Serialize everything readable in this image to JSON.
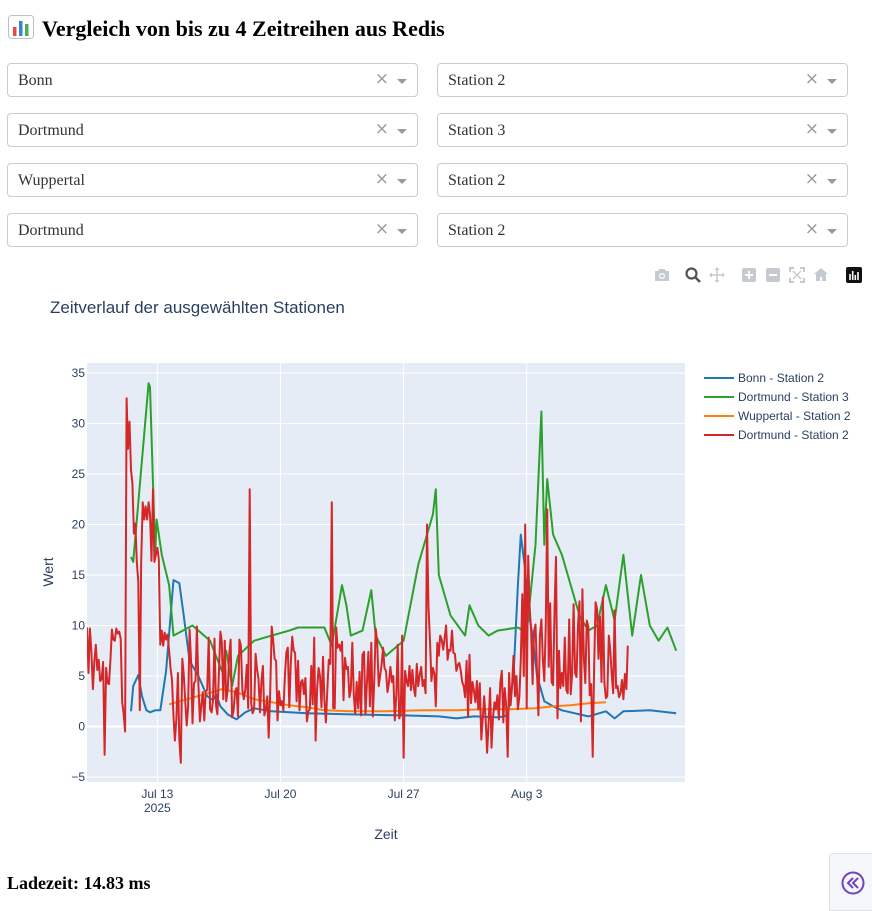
{
  "page": {
    "title": "Vergleich von bis zu 4 Zeitreihen aus Redis",
    "title_icon": "bar-chart-emoji",
    "load_time": "Ladezeit: 14.83 ms"
  },
  "selectors": [
    {
      "city": "Bonn",
      "station": "Station 2"
    },
    {
      "city": "Dortmund",
      "station": "Station 3"
    },
    {
      "city": "Wuppertal",
      "station": "Station 2"
    },
    {
      "city": "Dortmund",
      "station": "Station 2"
    }
  ],
  "clear_symbol": "×",
  "modebar": [
    "camera-icon",
    "zoom-icon",
    "pan-icon",
    "zoom-in-icon",
    "zoom-out-icon",
    "autoscale-icon",
    "reset-axes-icon",
    "plotly-logo-icon"
  ],
  "colors": {
    "plot_bg": "#e5ecf6",
    "series": [
      "#1f77b4",
      "#2ca02c",
      "#ff7f0e",
      "#d62728"
    ]
  },
  "chart_data": {
    "type": "line",
    "title": "Zeitverlauf der ausgewählten Stationen",
    "xlabel": "Zeit",
    "ylabel": "Wert",
    "xlim": [
      "2025-07-09",
      "2025-08-12"
    ],
    "ylim": [
      -5.5,
      36
    ],
    "yticks": [
      -5,
      0,
      5,
      10,
      15,
      20,
      25,
      30,
      35
    ],
    "ytick_labels": [
      "−5",
      "0",
      "5",
      "10",
      "15",
      "20",
      "25",
      "30",
      "35"
    ],
    "xticks": [
      "2025-07-13",
      "2025-07-20",
      "2025-07-27",
      "2025-08-03"
    ],
    "xtick_labels": [
      "Jul 13",
      "Jul 20",
      "Jul 27",
      "Aug 3"
    ],
    "xtick_sublabel": "2025",
    "grid": true,
    "legend_position": "right",
    "series": [
      {
        "name": "Bonn - Station 2",
        "points": [
          [
            "2025-07-11 12:00",
            1.5
          ],
          [
            "2025-07-11 15:00",
            4.0
          ],
          [
            "2025-07-11 22:00",
            5.1
          ],
          [
            "2025-07-12 03:00",
            3.0
          ],
          [
            "2025-07-12 09:00",
            1.6
          ],
          [
            "2025-07-12 14:00",
            1.4
          ],
          [
            "2025-07-12 21:00",
            1.6
          ],
          [
            "2025-07-13 04:00",
            1.6
          ],
          [
            "2025-07-13 12:00",
            5.5
          ],
          [
            "2025-07-13 22:00",
            14.5
          ],
          [
            "2025-07-14 06:00",
            14.2
          ],
          [
            "2025-07-14 12:00",
            11.0
          ],
          [
            "2025-07-14 20:00",
            6.5
          ],
          [
            "2025-07-15 08:00",
            5.0
          ],
          [
            "2025-07-15 20:00",
            3.0
          ],
          [
            "2025-07-16 04:00",
            2.6
          ],
          [
            "2025-07-16 08:00",
            3.2
          ],
          [
            "2025-07-16 14:00",
            2.0
          ],
          [
            "2025-07-17 00:00",
            1.2
          ],
          [
            "2025-07-17 12:00",
            0.7
          ],
          [
            "2025-07-18 00:00",
            1.4
          ],
          [
            "2025-07-18 12:00",
            1.8
          ],
          [
            "2025-07-19 12:00",
            1.5
          ],
          [
            "2025-07-21 12:00",
            1.3
          ],
          [
            "2025-07-24 00:00",
            1.2
          ],
          [
            "2025-07-27 00:00",
            1.1
          ],
          [
            "2025-07-29 00:00",
            1.0
          ],
          [
            "2025-07-30 00:00",
            0.8
          ],
          [
            "2025-07-31 00:00",
            1.0
          ],
          [
            "2025-08-01 10:00",
            0.9
          ],
          [
            "2025-08-01 22:00",
            1.1
          ],
          [
            "2025-08-02 06:00",
            5.0
          ],
          [
            "2025-08-02 12:00",
            14.0
          ],
          [
            "2025-08-02 16:00",
            19.0
          ],
          [
            "2025-08-02 22:00",
            15.5
          ],
          [
            "2025-08-03 02:00",
            11.5
          ],
          [
            "2025-08-03 08:00",
            9.0
          ],
          [
            "2025-08-03 14:00",
            5.0
          ],
          [
            "2025-08-04 00:00",
            2.5
          ],
          [
            "2025-08-04 12:00",
            2.0
          ],
          [
            "2025-08-05 00:00",
            1.6
          ],
          [
            "2025-08-06 12:00",
            1.0
          ],
          [
            "2025-08-07 12:00",
            1.5
          ],
          [
            "2025-08-08 00:00",
            0.8
          ],
          [
            "2025-08-08 12:00",
            1.5
          ],
          [
            "2025-08-10 00:00",
            1.6
          ],
          [
            "2025-08-11 00:00",
            1.4
          ],
          [
            "2025-08-11 12:00",
            1.3
          ]
        ]
      },
      {
        "name": "Dortmund - Station 3",
        "points": [
          [
            "2025-07-11 12:00",
            16.8
          ],
          [
            "2025-07-11 15:00",
            16.3
          ],
          [
            "2025-07-12 12:00",
            34.0
          ],
          [
            "2025-07-12 14:00",
            33.6
          ],
          [
            "2025-07-12 21:00",
            17.0
          ],
          [
            "2025-07-12 23:00",
            20.5
          ],
          [
            "2025-07-13 06:00",
            17.0
          ],
          [
            "2025-07-13 16:00",
            14.0
          ],
          [
            "2025-07-13 22:00",
            9.0
          ],
          [
            "2025-07-15 00:00",
            10.0
          ],
          [
            "2025-07-16 00:00",
            8.5
          ],
          [
            "2025-07-16 16:00",
            5.5
          ],
          [
            "2025-07-16 22:00",
            7.5
          ],
          [
            "2025-07-17 06:00",
            4.0
          ],
          [
            "2025-07-17 14:00",
            7.0
          ],
          [
            "2025-07-18 12:00",
            8.5
          ],
          [
            "2025-07-19 12:00",
            9.0
          ],
          [
            "2025-07-20 12:00",
            9.5
          ],
          [
            "2025-07-21 00:00",
            9.8
          ],
          [
            "2025-07-22 12:00",
            9.8
          ],
          [
            "2025-07-22 22:00",
            8.0
          ],
          [
            "2025-07-23 12:00",
            14.0
          ],
          [
            "2025-07-23 18:00",
            12.0
          ],
          [
            "2025-07-24 00:00",
            9.0
          ],
          [
            "2025-07-24 16:00",
            9.5
          ],
          [
            "2025-07-25 04:00",
            13.5
          ],
          [
            "2025-07-25 10:00",
            9.0
          ],
          [
            "2025-07-26 00:00",
            7.0
          ],
          [
            "2025-07-27 00:00",
            8.5
          ],
          [
            "2025-07-27 20:00",
            16.0
          ],
          [
            "2025-07-28 16:00",
            21.0
          ],
          [
            "2025-07-28 20:00",
            23.5
          ],
          [
            "2025-07-29 00:00",
            15.0
          ],
          [
            "2025-07-29 16:00",
            11.0
          ],
          [
            "2025-07-30 12:00",
            9.0
          ],
          [
            "2025-07-30 18:00",
            12.0
          ],
          [
            "2025-07-31 06:00",
            10.0
          ],
          [
            "2025-07-31 20:00",
            9.0
          ],
          [
            "2025-08-01 08:00",
            9.5
          ],
          [
            "2025-08-02 12:00",
            9.8
          ],
          [
            "2025-08-03 00:00",
            9.3
          ],
          [
            "2025-08-03 12:00",
            18.0
          ],
          [
            "2025-08-03 20:00",
            31.2
          ],
          [
            "2025-08-04 00:00",
            18.0
          ],
          [
            "2025-08-04 04:00",
            24.5
          ],
          [
            "2025-08-04 12:00",
            19.0
          ],
          [
            "2025-08-05 00:00",
            17.0
          ],
          [
            "2025-08-05 12:00",
            14.0
          ],
          [
            "2025-08-06 00:00",
            11.0
          ],
          [
            "2025-08-06 12:00",
            9.5
          ],
          [
            "2025-08-07 00:00",
            10.0
          ],
          [
            "2025-08-07 12:00",
            14.0
          ],
          [
            "2025-08-08 00:00",
            10.5
          ],
          [
            "2025-08-08 12:00",
            17.0
          ],
          [
            "2025-08-09 00:00",
            9.0
          ],
          [
            "2025-08-09 12:00",
            15.0
          ],
          [
            "2025-08-10 00:00",
            10.0
          ],
          [
            "2025-08-10 12:00",
            8.5
          ],
          [
            "2025-08-11 00:00",
            9.8
          ],
          [
            "2025-08-11 12:00",
            7.5
          ]
        ]
      },
      {
        "name": "Wuppertal - Station 2",
        "points": [
          [
            "2025-07-13 16:00",
            2.2
          ],
          [
            "2025-07-14 12:00",
            2.6
          ],
          [
            "2025-07-15 12:00",
            3.1
          ],
          [
            "2025-07-16 08:00",
            3.5
          ],
          [
            "2025-07-16 16:00",
            3.7
          ],
          [
            "2025-07-17 12:00",
            3.4
          ],
          [
            "2025-07-18 12:00",
            2.7
          ],
          [
            "2025-07-19 12:00",
            2.4
          ],
          [
            "2025-07-20 12:00",
            2.1
          ],
          [
            "2025-07-21 12:00",
            1.9
          ],
          [
            "2025-07-22 12:00",
            1.6
          ],
          [
            "2025-07-24 00:00",
            1.5
          ],
          [
            "2025-07-26 00:00",
            1.5
          ],
          [
            "2025-07-28 00:00",
            1.6
          ],
          [
            "2025-07-30 00:00",
            1.6
          ],
          [
            "2025-07-31 12:00",
            1.7
          ],
          [
            "2025-08-02 00:00",
            1.7
          ],
          [
            "2025-08-03 12:00",
            1.8
          ],
          [
            "2025-08-04 12:00",
            2.0
          ],
          [
            "2025-08-05 12:00",
            2.1
          ],
          [
            "2025-08-06 12:00",
            2.3
          ],
          [
            "2025-08-07 12:00",
            2.4
          ]
        ]
      }
    ],
    "red_series": {
      "name": "Dortmund - Station 2",
      "start": "2025-07-09 00:00",
      "step_hours": 2,
      "values": [
        9.8,
        5.3,
        9.7,
        7.4,
        3.7,
        6.4,
        8.1,
        5.6,
        6.6,
        4.5,
        4.7,
        6.4,
        -2.8,
        5.8,
        4.3,
        4.2,
        6.7,
        9.6,
        8.6,
        8.5,
        9.7,
        9.2,
        9.4,
        8.7,
        2.4,
        1.3,
        -0.5,
        32.5,
        27.5,
        30.2,
        25.4,
        24.1,
        19.1,
        20.1,
        16.3,
        14.3,
        1.6,
        16.4,
        22.2,
        20.5,
        21.8,
        20.5,
        22.2,
        21.0,
        16.4,
        23.5,
        16.3,
        17.0,
        17.7,
        16.5,
        8.1,
        9.5,
        8.0,
        9.3,
        8.6,
        9.1,
        7.5,
        5.8,
        4.6,
        1.0,
        -1.4,
        0.8,
        5.3,
        -1.2,
        -3.6,
        6.7,
        5.2,
        2.6,
        0.1,
        1.9,
        9.6,
        6.4,
        0.3,
        4.3,
        4.5,
        9.9,
        4.2,
        0.5,
        2.1,
        3.4,
        0.6,
        3.5,
        3.6,
        8.8,
        1.7,
        1.4,
        2.6,
        8.7,
        2.1,
        1.2,
        5.3,
        9.4,
        8.4,
        2.7,
        8.5,
        2.5,
        3.6,
        7.1,
        8.6,
        0.9,
        1.6,
        3.4,
        3.8,
        1.0,
        8.6,
        8.0,
        3.6,
        2.7,
        3.7,
        6.1,
        1.8,
        23.5,
        2.3,
        1.3,
        1.7,
        7.2,
        5.7,
        4.7,
        1.4,
        4.4,
        6.0,
        1.1,
        1.7,
        3.0,
        -1.1,
        3.4,
        9.9,
        8.6,
        6.7,
        6.5,
        0.6,
        3.5,
        2.1,
        2.5,
        1.6,
        5.0,
        7.3,
        7.8,
        1.9,
        6.0,
        8.9,
        7.5,
        7.3,
        2.5,
        6.5,
        1.6,
        4.4,
        4.6,
        3.2,
        4.8,
        0.5,
        1.5,
        1.7,
        6.0,
        2.2,
        8.8,
        -1.4,
        3.7,
        5.8,
        5.0,
        1.9,
        6.9,
        2.6,
        0.4,
        3.8,
        6.6,
        6.2,
        22.2,
        1.8,
        1.8,
        9.8,
        7.8,
        8.1,
        7.5,
        8.4,
        2.6,
        6.8,
        5.7,
        5.9,
        2.9,
        3.6,
        8.3,
        3.1,
        1.3,
        4.4,
        1.8,
        5.4,
        1.1,
        7.1,
        7.4,
        1.2,
        4.3,
        7.4,
        2.0,
        8.3,
        1.0,
        4.6,
        9.7,
        8.3,
        4.0,
        5.0,
        6.1,
        7.8,
        5.8,
        5.5,
        3.4,
        4.3,
        5.9,
        4.4,
        5.0,
        0.6,
        3.1,
        8.1,
        0.8,
        1.2,
        9.0,
        -3.1,
        5.5,
        4.5,
        4.0,
        6.0,
        3.6,
        5.6,
        3.8,
        3.0,
        6.2,
        4.0,
        5.1,
        5.9,
        4.0,
        4.6,
        3.3,
        20.0,
        11.8,
        8.5,
        4.5,
        5.8,
        5.2,
        2.0,
        8.3,
        7.0,
        9.0,
        8.6,
        7.6,
        8.7,
        10.0,
        6.6,
        7.6,
        7.5,
        9.5,
        7.3,
        7.2,
        5.5,
        6.1,
        6.3,
        5.5,
        4.4,
        4.0,
        2.9,
        6.5,
        1.0,
        7.1,
        2.3,
        4.4,
        3.6,
        2.4,
        4.5,
        1.7,
        4.3,
        -1.3,
        0.7,
        3.0,
        0.6,
        -2.6,
        0.4,
        3.8,
        -2.1,
        0.9,
        2.4,
        1.7,
        3.1,
        0.7,
        4.3,
        5.5,
        0.4,
        3.8,
        2.0,
        -3.0,
        5.3,
        2.1,
        3.9,
        7.0,
        3.0,
        5.0,
        1.7,
        3.0,
        6.6,
        13.1,
        5.0,
        20.0,
        1.8,
        16.9,
        11.9,
        9.5,
        4.2,
        9.4,
        10.1,
        5.5,
        1.1,
        9.0,
        10.6,
        6.7,
        4.5,
        10.2,
        21.5,
        5.9,
        12.2,
        4.4,
        4.1,
        11.8,
        16.8,
        0.8,
        7.5,
        3.8,
        5.3,
        4.0,
        8.8,
        3.6,
        3.3,
        10.6,
        3.2,
        5.2,
        12.1,
        5.3,
        4.9,
        10.0,
        12.4,
        0.5,
        13.6,
        6.7,
        4.3,
        10.5,
        9.9,
        3.1,
        4.2,
        -3.0,
        5.7,
        12.3,
        11.6,
        6.7,
        10.9,
        4.4,
        12.8,
        4.3,
        2.8,
        3.0,
        9.0,
        7.5,
        5.2,
        3.3,
        11.5,
        3.8,
        4.0,
        2.9,
        3.3,
        4.6,
        2.7,
        5.2,
        3.7,
        8.0
      ]
    }
  }
}
